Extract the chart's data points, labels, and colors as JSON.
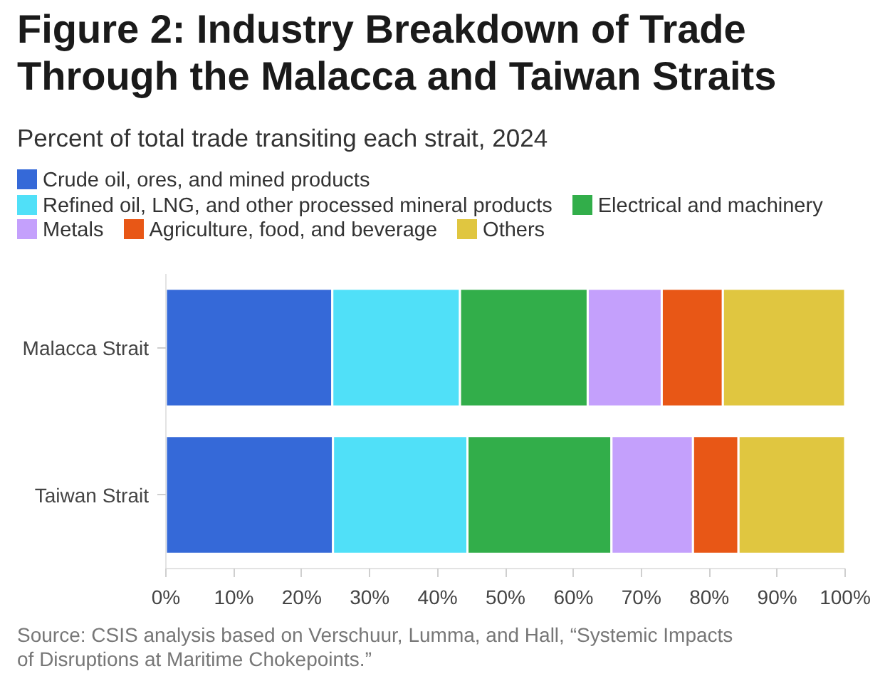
{
  "chart_data": {
    "type": "bar",
    "orientation": "horizontal",
    "stacked": true,
    "title": "Figure 2: Industry Breakdown of Trade Through the Malacca and Taiwan Straits",
    "subtitle": "Percent of total trade transiting each strait, 2024",
    "categories": [
      "Malacca Strait",
      "Taiwan Strait"
    ],
    "series": [
      {
        "name": "Crude oil, ores, and mined products",
        "color": "#3569d8",
        "values": [
          24.5,
          24.6
        ]
      },
      {
        "name": "Refined oil, LNG, and other processed mineral products",
        "color": "#50e0f8",
        "values": [
          18.8,
          19.8
        ]
      },
      {
        "name": "Electrical and machinery",
        "color": "#32ae4a",
        "values": [
          18.8,
          21.2
        ]
      },
      {
        "name": "Metals",
        "color": "#c4a0fc",
        "values": [
          10.9,
          12.0
        ]
      },
      {
        "name": "Agriculture, food, and beverage",
        "color": "#e85716",
        "values": [
          9.0,
          6.7
        ]
      },
      {
        "name": "Others",
        "color": "#e0c640",
        "values": [
          18.0,
          15.7
        ]
      }
    ],
    "xlim": [
      0,
      100
    ],
    "xticks": [
      {
        "value": 0,
        "label": "0%"
      },
      {
        "value": 10,
        "label": "10%"
      },
      {
        "value": 20,
        "label": "20%"
      },
      {
        "value": 30,
        "label": "30%"
      },
      {
        "value": 40,
        "label": "40%"
      },
      {
        "value": 50,
        "label": "50%"
      },
      {
        "value": 60,
        "label": "60%"
      },
      {
        "value": 70,
        "label": "70%"
      },
      {
        "value": 80,
        "label": "80%"
      },
      {
        "value": 90,
        "label": "90%"
      },
      {
        "value": 100,
        "label": "100%"
      }
    ],
    "legend": "top",
    "annotations": [
      "Source: CSIS analysis based on Verschuur, Lumma, and Hall, “Systemic Impacts of Disruptions at Maritime Chokepoints.”"
    ]
  }
}
